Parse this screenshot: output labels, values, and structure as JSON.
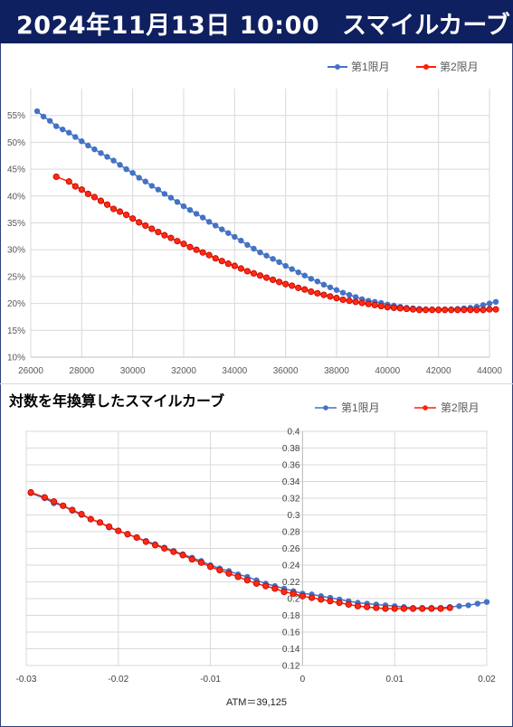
{
  "header": {
    "datetime": "2024年11月13日 10:00",
    "title": "スマイルカーブ"
  },
  "colors": {
    "banner_bg": "#0f2060",
    "series1": "#4472c4",
    "series2": "#ff2000",
    "grid": "#d9d9d9"
  },
  "chart_data": [
    {
      "type": "line",
      "title": "",
      "xlabel": "",
      "ylabel": "",
      "xlim": [
        26000,
        44000
      ],
      "ylim": [
        0.1,
        0.6
      ],
      "xticks": [
        "26000",
        "28000",
        "30000",
        "32000",
        "34000",
        "36000",
        "38000",
        "40000",
        "42000",
        "44000"
      ],
      "yticks": [
        "10%",
        "15%",
        "20%",
        "25%",
        "30%",
        "35%",
        "40%",
        "45%",
        "50%",
        "55%"
      ],
      "legend": "top-right",
      "grid": true,
      "series": [
        {
          "name": "第1限月",
          "color": "#4472c4",
          "x": [
            26250,
            26500,
            26750,
            27000,
            27250,
            27500,
            27750,
            28000,
            28250,
            28500,
            28750,
            29000,
            29250,
            29500,
            29750,
            30000,
            30250,
            30500,
            30750,
            31000,
            31250,
            31500,
            31750,
            32000,
            32250,
            32500,
            32750,
            33000,
            33250,
            33500,
            33750,
            34000,
            34250,
            34500,
            34750,
            35000,
            35250,
            35500,
            35750,
            36000,
            36250,
            36500,
            36750,
            37000,
            37250,
            37500,
            37750,
            38000,
            38250,
            38500,
            38750,
            39000,
            39250,
            39500,
            39750,
            40000,
            40250,
            40500,
            40750,
            41000,
            41250,
            41500,
            41750,
            42000,
            42250,
            42500,
            42750,
            43000,
            43250,
            43500,
            43750,
            44000,
            44250
          ],
          "y": [
            0.558,
            0.548,
            0.54,
            0.53,
            0.524,
            0.518,
            0.51,
            0.502,
            0.494,
            0.487,
            0.48,
            0.473,
            0.466,
            0.458,
            0.45,
            0.443,
            0.434,
            0.427,
            0.419,
            0.412,
            0.404,
            0.397,
            0.389,
            0.381,
            0.374,
            0.367,
            0.36,
            0.352,
            0.345,
            0.338,
            0.331,
            0.324,
            0.317,
            0.309,
            0.302,
            0.295,
            0.289,
            0.283,
            0.277,
            0.27,
            0.264,
            0.258,
            0.252,
            0.246,
            0.241,
            0.235,
            0.23,
            0.225,
            0.22,
            0.216,
            0.212,
            0.208,
            0.205,
            0.203,
            0.201,
            0.198,
            0.196,
            0.194,
            0.192,
            0.191,
            0.19,
            0.189,
            0.189,
            0.189,
            0.189,
            0.189,
            0.19,
            0.191,
            0.192,
            0.194,
            0.197,
            0.2,
            0.203
          ]
        },
        {
          "name": "第2限月",
          "color": "#ff2000",
          "x": [
            27000,
            27500,
            27750,
            28000,
            28250,
            28500,
            28750,
            29000,
            29250,
            29500,
            29750,
            30000,
            30250,
            30500,
            30750,
            31000,
            31250,
            31500,
            31750,
            32000,
            32250,
            32500,
            32750,
            33000,
            33250,
            33500,
            33750,
            34000,
            34250,
            34500,
            34750,
            35000,
            35250,
            35500,
            35750,
            36000,
            36250,
            36500,
            36750,
            37000,
            37250,
            37500,
            37750,
            38000,
            38250,
            38500,
            38750,
            39000,
            39250,
            39500,
            39750,
            40000,
            40250,
            40500,
            40750,
            41000,
            41250,
            41500,
            41750,
            42000,
            42250,
            42500,
            42750,
            43000,
            43250,
            43500,
            43750,
            44000,
            44250
          ],
          "y": [
            0.436,
            0.427,
            0.418,
            0.412,
            0.404,
            0.398,
            0.391,
            0.384,
            0.376,
            0.371,
            0.365,
            0.358,
            0.351,
            0.345,
            0.339,
            0.333,
            0.327,
            0.322,
            0.316,
            0.311,
            0.305,
            0.3,
            0.295,
            0.29,
            0.284,
            0.279,
            0.274,
            0.27,
            0.265,
            0.26,
            0.256,
            0.252,
            0.248,
            0.244,
            0.24,
            0.236,
            0.233,
            0.229,
            0.226,
            0.222,
            0.219,
            0.216,
            0.213,
            0.21,
            0.207,
            0.205,
            0.203,
            0.201,
            0.199,
            0.197,
            0.195,
            0.193,
            0.192,
            0.191,
            0.19,
            0.189,
            0.188,
            0.188,
            0.188,
            0.188,
            0.188,
            0.188,
            0.188,
            0.188,
            0.188,
            0.188,
            0.188,
            0.189,
            0.189
          ]
        }
      ]
    },
    {
      "type": "line",
      "title": "対数を年換算したスマイルカーブ",
      "xlabel": "",
      "ylabel": "",
      "xlim": [
        -0.03,
        0.02
      ],
      "ylim": [
        0.12,
        0.4
      ],
      "xticks": [
        "-0.03",
        "-0.02",
        "-0.01",
        "0",
        "0.01",
        "0.02"
      ],
      "yticks": [
        "0.12",
        "0.14",
        "0.16",
        "0.18",
        "0.2",
        "0.22",
        "0.24",
        "0.26",
        "0.28",
        "0.3",
        "0.32",
        "0.34",
        "0.36",
        "0.38",
        "0.4"
      ],
      "legend": "top-right",
      "grid": true,
      "annotation": "ATM＝39,125",
      "series": [
        {
          "name": "第1限月",
          "color": "#4472c4",
          "x": [
            -0.0295,
            -0.028,
            -0.027,
            -0.026,
            -0.025,
            -0.024,
            -0.023,
            -0.022,
            -0.021,
            -0.02,
            -0.019,
            -0.018,
            -0.017,
            -0.016,
            -0.015,
            -0.014,
            -0.013,
            -0.012,
            -0.011,
            -0.01,
            -0.009,
            -0.008,
            -0.007,
            -0.006,
            -0.005,
            -0.004,
            -0.003,
            -0.002,
            -0.001,
            0.0,
            0.001,
            0.002,
            0.003,
            0.004,
            0.005,
            0.006,
            0.007,
            0.008,
            0.009,
            0.01,
            0.011,
            0.012,
            0.013,
            0.014,
            0.015,
            0.016,
            0.017,
            0.018,
            0.019,
            0.02
          ],
          "y": [
            0.326,
            0.32,
            0.314,
            0.311,
            0.305,
            0.3,
            0.295,
            0.291,
            0.285,
            0.281,
            0.277,
            0.273,
            0.269,
            0.265,
            0.261,
            0.257,
            0.253,
            0.249,
            0.245,
            0.24,
            0.236,
            0.233,
            0.229,
            0.226,
            0.222,
            0.218,
            0.215,
            0.212,
            0.209,
            0.206,
            0.205,
            0.203,
            0.201,
            0.199,
            0.197,
            0.195,
            0.194,
            0.193,
            0.192,
            0.191,
            0.19,
            0.189,
            0.189,
            0.189,
            0.189,
            0.19,
            0.191,
            0.192,
            0.194,
            0.196
          ]
        },
        {
          "name": "第2限月",
          "color": "#ff2000",
          "x": [
            -0.0295,
            -0.028,
            -0.027,
            -0.026,
            -0.025,
            -0.024,
            -0.023,
            -0.022,
            -0.021,
            -0.02,
            -0.019,
            -0.018,
            -0.017,
            -0.016,
            -0.015,
            -0.014,
            -0.013,
            -0.012,
            -0.011,
            -0.01,
            -0.009,
            -0.008,
            -0.007,
            -0.006,
            -0.005,
            -0.004,
            -0.003,
            -0.002,
            -0.001,
            0.0,
            0.001,
            0.002,
            0.003,
            0.004,
            0.005,
            0.006,
            0.007,
            0.008,
            0.009,
            0.01,
            0.011,
            0.012,
            0.013,
            0.014,
            0.015,
            0.016
          ],
          "y": [
            0.327,
            0.321,
            0.316,
            0.311,
            0.306,
            0.301,
            0.295,
            0.291,
            0.286,
            0.281,
            0.277,
            0.273,
            0.268,
            0.264,
            0.26,
            0.256,
            0.252,
            0.247,
            0.243,
            0.238,
            0.234,
            0.23,
            0.226,
            0.222,
            0.218,
            0.215,
            0.212,
            0.208,
            0.206,
            0.203,
            0.201,
            0.199,
            0.197,
            0.195,
            0.193,
            0.191,
            0.19,
            0.189,
            0.188,
            0.188,
            0.188,
            0.188,
            0.188,
            0.188,
            0.188,
            0.189
          ]
        }
      ]
    }
  ]
}
